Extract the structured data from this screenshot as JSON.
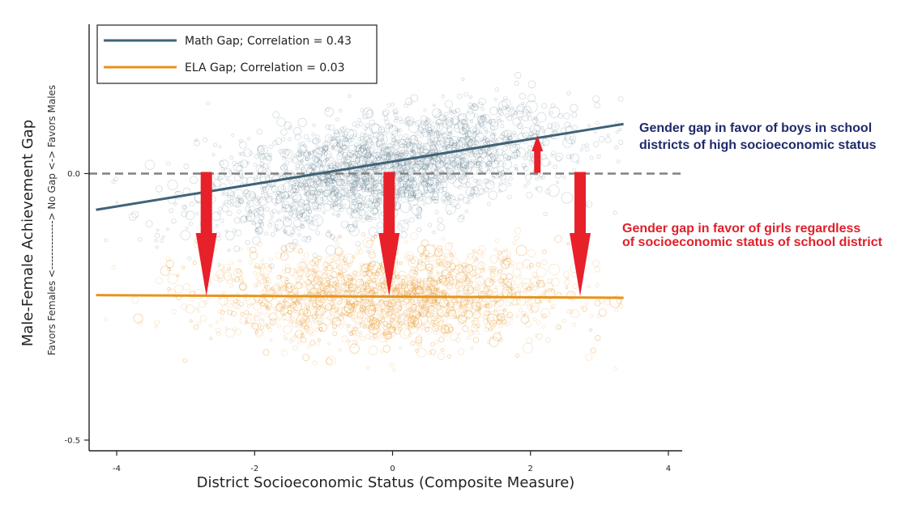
{
  "chart_data": {
    "type": "scatter",
    "xlabel": "District Socioeconomic Status (Composite Measure)",
    "ylabel": "Male-Female Achievement Gap",
    "ylabel_sub": "Favors Females <--------------> No Gap <-> Favors Males",
    "xlim": [
      -4.4,
      4.2
    ],
    "ylim": [
      -0.52,
      0.28
    ],
    "x_ticks": [
      {
        "value": -4,
        "label": "-4"
      },
      {
        "value": -2,
        "label": "-2"
      },
      {
        "value": 0,
        "label": "0"
      },
      {
        "value": 2,
        "label": "2"
      },
      {
        "value": 4,
        "label": "4"
      }
    ],
    "y_ticks": [
      {
        "value": 0,
        "label": "0.0"
      },
      {
        "value": -0.5,
        "label": "-0.5"
      }
    ],
    "reference_line": {
      "y": 0,
      "style": "dashed",
      "color": "#808080"
    },
    "series": [
      {
        "name": "Math Gap; Correlation = 0.43",
        "color": "#3f6377",
        "fit_line": {
          "x": [
            -4.3,
            3.35
          ],
          "y": [
            -0.068,
            0.093
          ]
        },
        "cloud": {
          "x_center": -0.1,
          "x_spread": 1.3,
          "y_center": 0.01,
          "y_spread": 0.05,
          "slope": 0.021,
          "x_min": -4.3,
          "x_max": 3.35
        }
      },
      {
        "name": "ELA Gap; Correlation = 0.03",
        "color": "#e8931c",
        "fit_line": {
          "x": [
            -4.3,
            3.35
          ],
          "y": [
            -0.228,
            -0.233
          ]
        },
        "cloud": {
          "x_center": -0.1,
          "x_spread": 1.3,
          "y_center": -0.23,
          "y_spread": 0.045,
          "slope": 0.0,
          "x_min": -4.3,
          "x_max": 3.35
        }
      }
    ],
    "legend": {
      "position": "top-left"
    },
    "annotations": [
      {
        "lines": [
          "Gender gap in favor of boys in school",
          "districts of high socioeconomic status"
        ],
        "color": "#1f2a6b"
      },
      {
        "lines": [
          "Gender gap in favor of girls regardless",
          "of socioeconomic status of school district"
        ],
        "color": "#e0202a"
      }
    ],
    "arrows": {
      "color": "#e8202a",
      "down": [
        {
          "x": -2.7,
          "y_from": 0.0,
          "y_to": -0.23
        },
        {
          "x": -0.05,
          "y_from": 0.0,
          "y_to": -0.23
        },
        {
          "x": 2.72,
          "y_from": 0.0,
          "y_to": -0.23
        }
      ],
      "up": [
        {
          "x": 2.1,
          "y_from": 0.0,
          "y_to": 0.072
        }
      ]
    }
  }
}
